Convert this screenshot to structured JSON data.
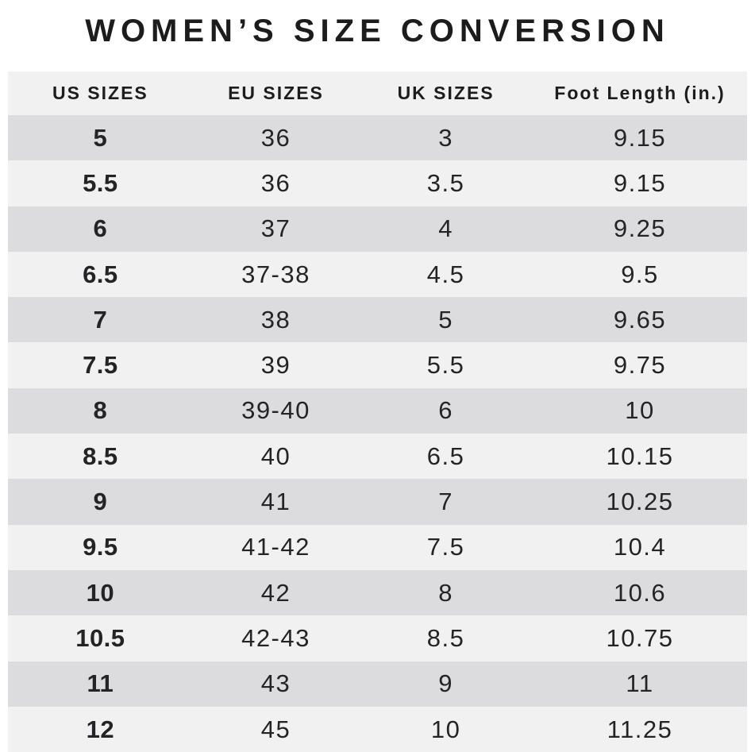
{
  "title": "WOMEN’S SIZE CONVERSION",
  "colors": {
    "page_bg": "#ffffff",
    "header_bg": "#f2f1f1",
    "row_light": "#f2f1f1",
    "row_dark": "#dcdcde",
    "text": "#242427",
    "title_text": "#1c1c1c"
  },
  "chart_data": {
    "type": "table",
    "title": "WOMEN’S SIZE CONVERSION",
    "columns": [
      "US SIZES",
      "EU SIZES",
      "UK SIZES",
      "Foot Length (in.)"
    ],
    "rows": [
      [
        "5",
        "36",
        "3",
        "9.15"
      ],
      [
        "5.5",
        "36",
        "3.5",
        "9.15"
      ],
      [
        "6",
        "37",
        "4",
        "9.25"
      ],
      [
        "6.5",
        "37-38",
        "4.5",
        "9.5"
      ],
      [
        "7",
        "38",
        "5",
        "9.65"
      ],
      [
        "7.5",
        "39",
        "5.5",
        "9.75"
      ],
      [
        "8",
        "39-40",
        "6",
        "10"
      ],
      [
        "8.5",
        "40",
        "6.5",
        "10.15"
      ],
      [
        "9",
        "41",
        "7",
        "10.25"
      ],
      [
        "9.5",
        "41-42",
        "7.5",
        "10.4"
      ],
      [
        "10",
        "42",
        "8",
        "10.6"
      ],
      [
        "10.5",
        "42-43",
        "8.5",
        "10.75"
      ],
      [
        "11",
        "43",
        "9",
        "11"
      ],
      [
        "12",
        "45",
        "10",
        "11.25"
      ]
    ]
  }
}
